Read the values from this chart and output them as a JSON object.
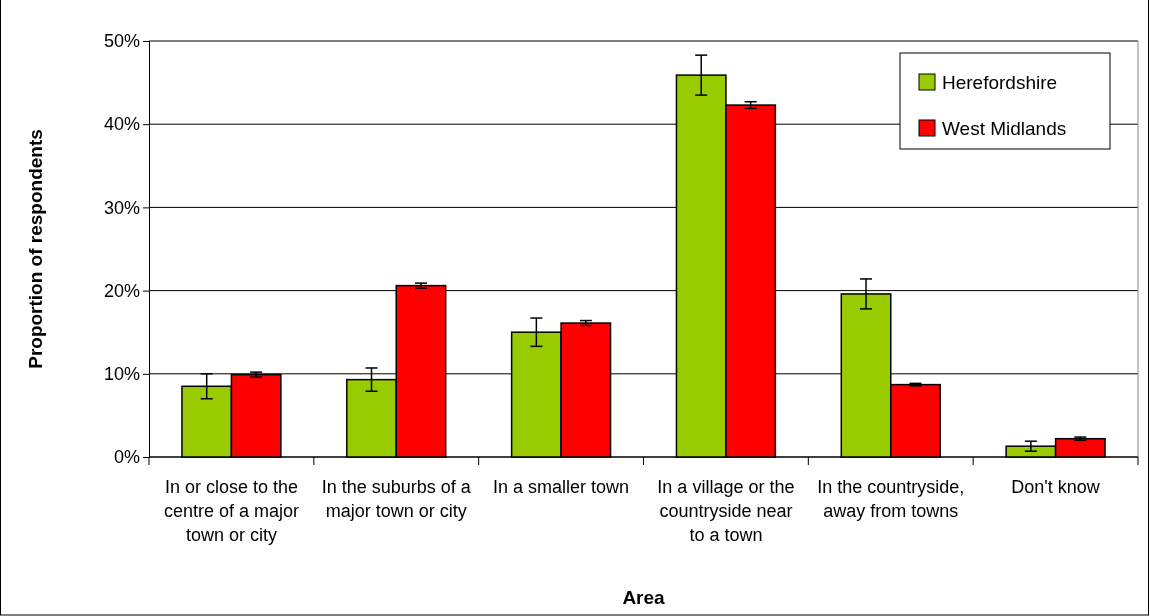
{
  "chart_data": {
    "type": "bar",
    "xlabel": "Area",
    "ylabel": "Proportion of respondents",
    "categories": [
      "In or close to the centre of a major town or city",
      "In the suburbs of a major town or city",
      "In a smaller town",
      "In a village or the countryside near to a town",
      "In the countryside, away from towns",
      "Don't know"
    ],
    "series": [
      {
        "name": "Herefordshire",
        "color": "#99cc00",
        "values": [
          8.5,
          9.3,
          15.0,
          45.9,
          19.6,
          1.3
        ],
        "errors": [
          1.5,
          1.4,
          1.7,
          2.4,
          1.8,
          0.6
        ]
      },
      {
        "name": "West Midlands",
        "color": "#ff0000",
        "values": [
          9.9,
          20.6,
          16.1,
          42.3,
          8.7,
          2.2
        ],
        "errors": [
          0.3,
          0.3,
          0.3,
          0.4,
          0.15,
          0.2
        ]
      }
    ],
    "ylim": [
      0,
      50
    ],
    "yticks": [
      {
        "value": 0,
        "label": "0%"
      },
      {
        "value": 10,
        "label": "10%"
      },
      {
        "value": 20,
        "label": "20%"
      },
      {
        "value": 30,
        "label": "30%"
      },
      {
        "value": 40,
        "label": "40%"
      },
      {
        "value": 50,
        "label": "50%"
      }
    ],
    "grid": "y",
    "legend": "top right"
  }
}
